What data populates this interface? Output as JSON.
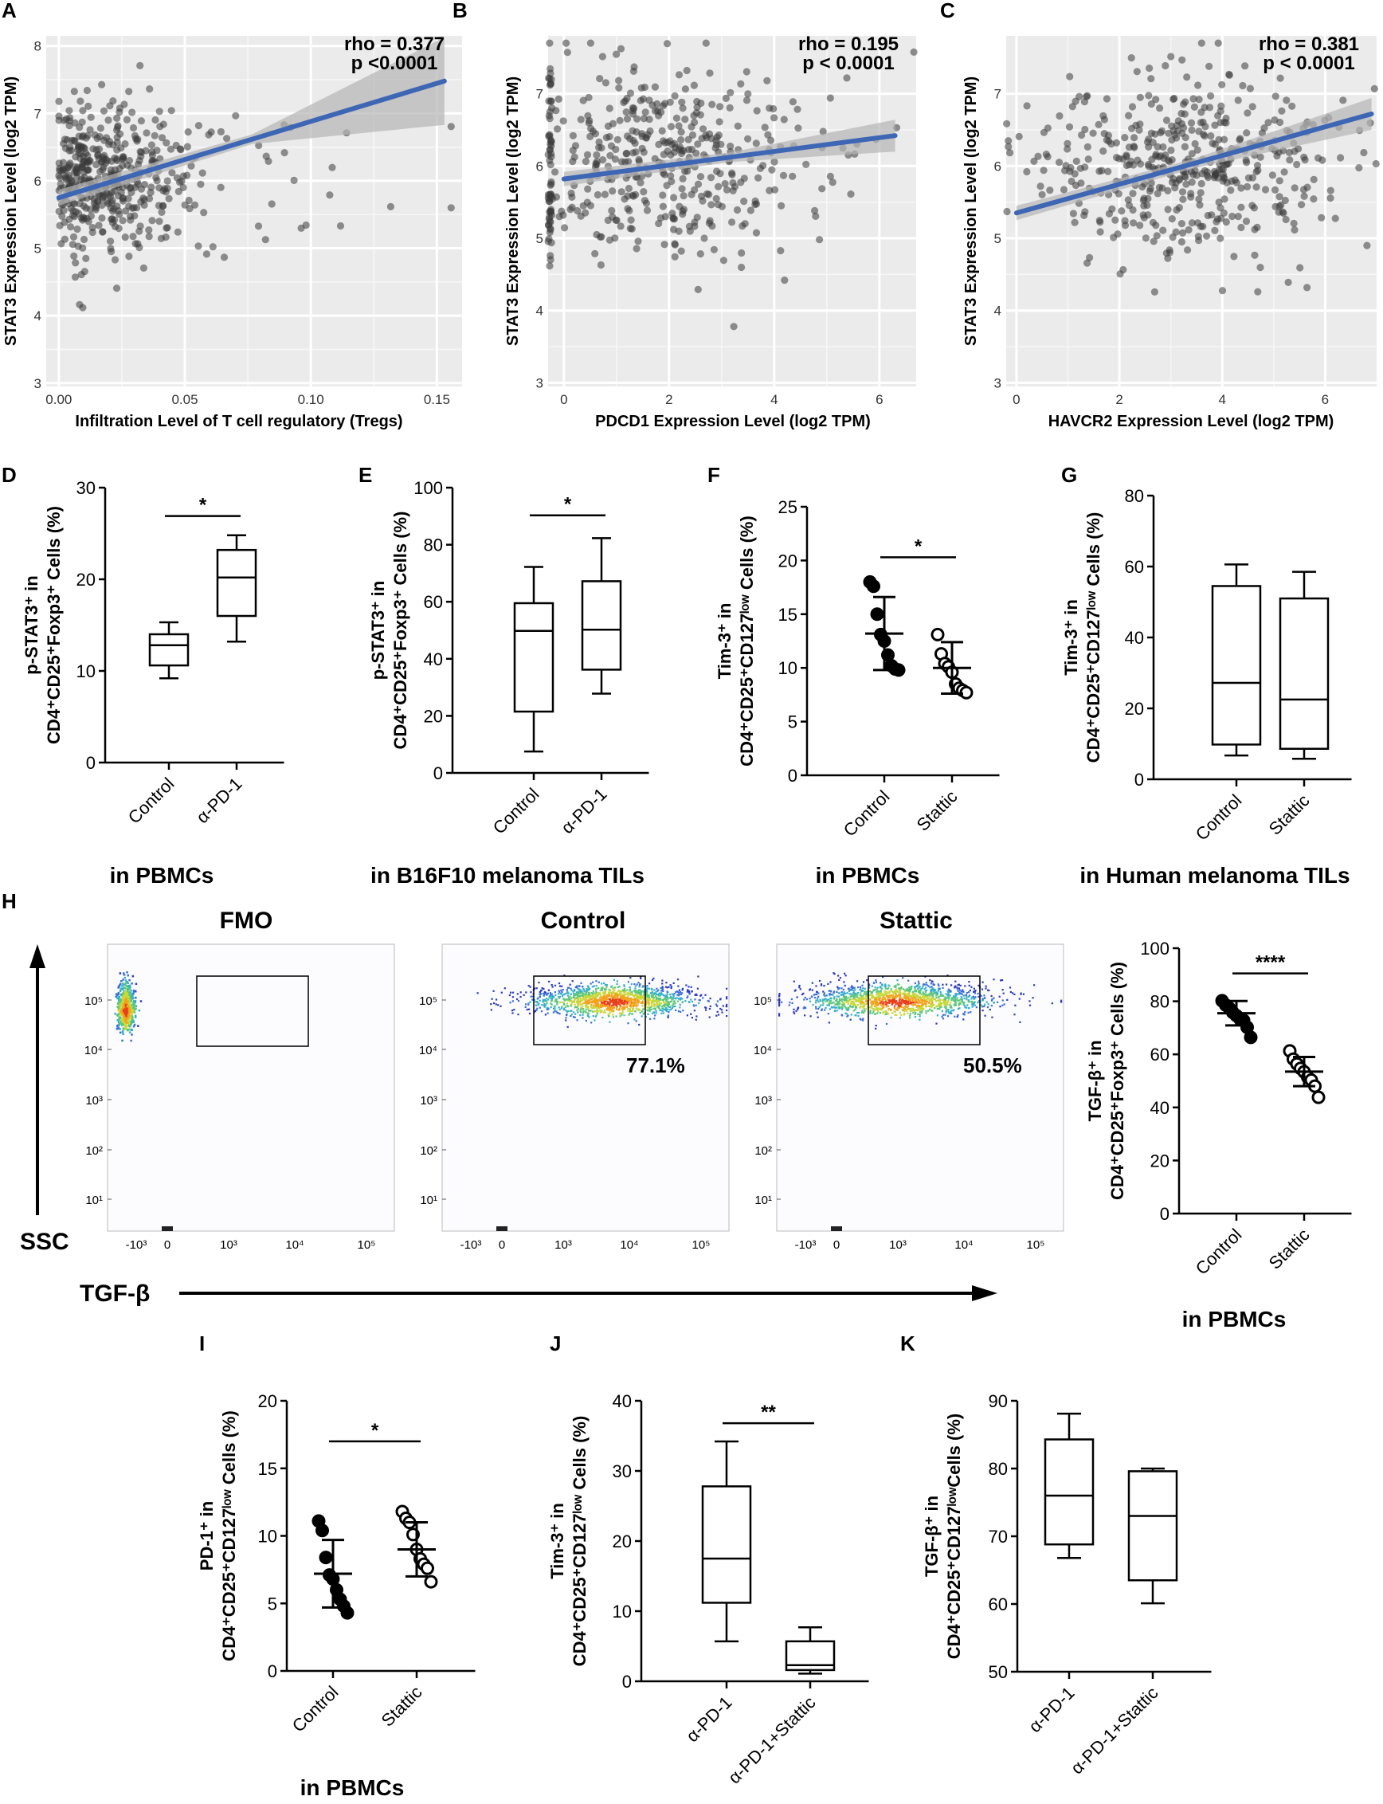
{
  "figure_labels": [
    "A",
    "B",
    "C",
    "D",
    "E",
    "F",
    "G",
    "H",
    "I",
    "J",
    "K"
  ],
  "captions": {
    "d": "in PBMCs",
    "e": "in B16F10 melanoma TILs",
    "f": "in PBMCs",
    "g": "in Human melanoma TILs",
    "h": "in PBMCs",
    "i": "in PBMCs"
  },
  "flow": {
    "titles": [
      "FMO",
      "Control",
      "Stattic"
    ],
    "percents": [
      "",
      "77.1%",
      "50.5%"
    ],
    "y_axis_label": "SSC",
    "x_axis_label": "TGF-β",
    "y_ticks": [
      "10⁵",
      "10⁴",
      "10³",
      "10²",
      "10¹"
    ],
    "x_ticks": [
      "-10³",
      "0",
      "10³",
      "10⁴",
      "10⁵"
    ]
  },
  "chart_data": [
    {
      "id": "A",
      "type": "scatter",
      "xlabel": "Infiltration Level of T cell regulatory (Tregs)",
      "ylabel": "STAT3 Expression Level (log2 TPM)",
      "xlim": [
        -0.005,
        0.16
      ],
      "ylim": [
        2.95,
        8.15
      ],
      "xticks": [
        0.0,
        0.05,
        0.1,
        0.15
      ],
      "xtick_labels": [
        "0.00",
        "0.05",
        "0.10",
        "0.15"
      ],
      "yticks": [
        3,
        4,
        5,
        6,
        7,
        8
      ],
      "ytick_labels": [
        "3",
        "4",
        "5",
        "6",
        "7",
        "8"
      ],
      "regression": {
        "x0": 0.0,
        "y0": 5.75,
        "x1": 0.153,
        "y1": 7.48
      },
      "annotation": [
        "rho = 0.377",
        "p <0.0001"
      ],
      "point_cloud": {
        "n": 470,
        "x_mean": 0.018,
        "x_spread": 0.02,
        "y_mean": 6.05,
        "y_spread": 0.62
      }
    },
    {
      "id": "B",
      "type": "scatter",
      "xlabel": "PDCD1 Expression Level (log2 TPM)",
      "ylabel": "STAT3 Expression Level (log2 TPM)",
      "xlim": [
        -0.3,
        6.7
      ],
      "ylim": [
        2.95,
        7.8
      ],
      "xticks": [
        0,
        2,
        4,
        6
      ],
      "xtick_labels": [
        "0",
        "2",
        "4",
        "6"
      ],
      "yticks": [
        3,
        4,
        5,
        6,
        7
      ],
      "ytick_labels": [
        "3",
        "4",
        "5",
        "6",
        "7"
      ],
      "regression": {
        "x0": 0.0,
        "y0": 5.82,
        "x1": 6.3,
        "y1": 6.42
      },
      "annotation": [
        "rho = 0.195",
        "p < 0.0001"
      ],
      "point_cloud": {
        "n": 470,
        "x_mean": 1.6,
        "x_spread": 1.6,
        "y_mean": 6.05,
        "y_spread": 0.7
      }
    },
    {
      "id": "C",
      "type": "scatter",
      "xlabel": "HAVCR2 Expression Level (log2 TPM)",
      "ylabel": "STAT3 Expression Level (log2 TPM)",
      "xlim": [
        -0.2,
        7.0
      ],
      "ylim": [
        2.95,
        7.8
      ],
      "xticks": [
        0,
        2,
        4,
        6
      ],
      "xtick_labels": [
        "0",
        "2",
        "4",
        "6"
      ],
      "yticks": [
        3,
        4,
        5,
        6,
        7
      ],
      "ytick_labels": [
        "3",
        "4",
        "5",
        "6",
        "7"
      ],
      "regression": {
        "x0": 0.0,
        "y0": 5.35,
        "x1": 6.9,
        "y1": 6.72
      },
      "annotation": [
        "rho = 0.381",
        "p < 0.0001"
      ],
      "point_cloud": {
        "n": 470,
        "x_mean": 3.3,
        "x_spread": 1.5,
        "y_mean": 6.05,
        "y_spread": 0.65
      }
    },
    {
      "id": "D",
      "type": "box",
      "ylim": [
        0,
        30
      ],
      "yticks": [
        0,
        10,
        20,
        30
      ],
      "ylabel_lines": [
        "p-STAT3⁺ in",
        "CD4⁺CD25⁺Foxp3⁺ Cells (%)"
      ],
      "categories": [
        "Control",
        "α-PD-1"
      ],
      "boxes": [
        {
          "min": 9.2,
          "q1": 10.6,
          "median": 12.8,
          "q3": 14.0,
          "max": 15.3
        },
        {
          "min": 13.2,
          "q1": 16.0,
          "median": 20.2,
          "q3": 23.2,
          "max": 24.8
        }
      ],
      "significance": "*",
      "sig_y": 26.9
    },
    {
      "id": "E",
      "type": "box",
      "ylim": [
        0,
        100
      ],
      "yticks": [
        0,
        20,
        40,
        60,
        80,
        100
      ],
      "ylabel_lines": [
        "p-STAT3⁺ in",
        "CD4⁺CD25⁺Foxp3⁺ Cells (%)"
      ],
      "categories": [
        "Control",
        "α-PD-1"
      ],
      "boxes": [
        {
          "min": 7.5,
          "q1": 21.5,
          "median": 49.8,
          "q3": 59.5,
          "max": 72.2
        },
        {
          "min": 27.8,
          "q1": 36.2,
          "median": 50.2,
          "q3": 67.2,
          "max": 82.3
        }
      ],
      "significance": "*",
      "sig_y": 90.3
    },
    {
      "id": "F",
      "type": "dot",
      "ylim": [
        0,
        25
      ],
      "yticks": [
        0,
        5,
        10,
        15,
        20,
        25
      ],
      "ylabel_lines": [
        "Tim-3⁺ in",
        "CD4⁺CD25⁺CD127ˡᵒʷ Cells (%)"
      ],
      "categories": [
        "Control",
        "Stattic"
      ],
      "groups": [
        {
          "filled": true,
          "mean": 13.2,
          "sd": 3.4,
          "points": [
            18.0,
            17.6,
            15.0,
            13.1,
            12.5,
            11.2,
            10.2,
            9.9,
            9.8
          ]
        },
        {
          "filled": false,
          "mean": 10.0,
          "sd": 2.4,
          "points": [
            13.1,
            11.3,
            10.4,
            10.1,
            9.6,
            8.5,
            8.1,
            7.9,
            7.7
          ]
        }
      ],
      "significance": "*",
      "sig_y": 20.3
    },
    {
      "id": "G",
      "type": "box",
      "ylim": [
        0,
        80
      ],
      "yticks": [
        0,
        20,
        40,
        60,
        80
      ],
      "ylabel_lines": [
        "Tim-3⁺ in",
        "CD4⁺CD25⁺CD127ˡᵒʷ Cells (%)"
      ],
      "categories": [
        "Control",
        "Stattic"
      ],
      "boxes": [
        {
          "min": 6.7,
          "q1": 9.8,
          "median": 27.2,
          "q3": 54.5,
          "max": 60.6
        },
        {
          "min": 5.8,
          "q1": 8.6,
          "median": 22.5,
          "q3": 51.0,
          "max": 58.5
        }
      ]
    },
    {
      "id": "H",
      "type": "dot",
      "ylim": [
        0,
        100
      ],
      "yticks": [
        0,
        20,
        40,
        60,
        80,
        100
      ],
      "ylabel_lines": [
        "TGF-β⁺ in",
        "CD4⁺CD25⁺Foxp3⁺ Cells (%)"
      ],
      "categories": [
        "Control",
        "Stattic"
      ],
      "groups": [
        {
          "filled": true,
          "mean": 75.5,
          "sd": 4.6,
          "points": [
            80.2,
            78.6,
            77.4,
            75.8,
            74.6,
            73.3,
            72.8,
            70.2,
            66.4
          ]
        },
        {
          "filled": false,
          "mean": 53.5,
          "sd": 5.5,
          "points": [
            61.3,
            58.2,
            56.4,
            54.7,
            53.4,
            51.4,
            50.3,
            48.0,
            43.8
          ]
        }
      ],
      "significance": "****",
      "sig_y": 90.5
    },
    {
      "id": "I",
      "type": "dot",
      "ylim": [
        0,
        20
      ],
      "yticks": [
        0,
        5,
        10,
        15,
        20
      ],
      "ylabel_lines": [
        "PD-1⁺ in",
        "CD4⁺CD25⁺CD127ˡᵒʷ Cells (%)"
      ],
      "categories": [
        "Control",
        "Stattic"
      ],
      "groups": [
        {
          "filled": true,
          "mean": 7.2,
          "sd": 2.5,
          "points": [
            11.1,
            10.4,
            8.4,
            7.1,
            6.8,
            6.0,
            5.3,
            4.8,
            4.3
          ]
        },
        {
          "filled": false,
          "mean": 9.0,
          "sd": 2.0,
          "points": [
            11.8,
            11.3,
            11.0,
            10.1,
            9.0,
            8.3,
            7.9,
            7.6,
            6.6
          ]
        }
      ],
      "significance": "*",
      "sig_y": 17.0
    },
    {
      "id": "J",
      "type": "box",
      "ylim": [
        0,
        40
      ],
      "yticks": [
        0,
        10,
        20,
        30,
        40
      ],
      "ylabel_lines": [
        "Tim-3⁺ in",
        "CD4⁺CD25⁺CD127ˡᵒʷ Cells (%)"
      ],
      "categories": [
        "α-PD-1",
        "α-PD-1+Stattic"
      ],
      "boxes": [
        {
          "min": 5.7,
          "q1": 11.2,
          "median": 17.5,
          "q3": 27.8,
          "max": 34.2
        },
        {
          "min": 1.1,
          "q1": 1.6,
          "median": 2.3,
          "q3": 5.7,
          "max": 7.7
        }
      ],
      "significance": "**",
      "sig_y": 36.8
    },
    {
      "id": "K",
      "type": "box",
      "ylim": [
        50,
        90
      ],
      "yticks": [
        50,
        60,
        70,
        80,
        90
      ],
      "ylabel_lines": [
        "TGF-β⁺ in",
        "CD4⁺CD25⁺CD127ˡᵒʷCells (%)"
      ],
      "categories": [
        "α-PD-1",
        "α-PD-1+Stattic"
      ],
      "boxes": [
        {
          "min": 66.8,
          "q1": 68.8,
          "median": 76.0,
          "q3": 84.3,
          "max": 88.1
        },
        {
          "min": 60.1,
          "q1": 63.5,
          "median": 73.0,
          "q3": 79.6,
          "max": 80.0
        }
      ]
    }
  ]
}
